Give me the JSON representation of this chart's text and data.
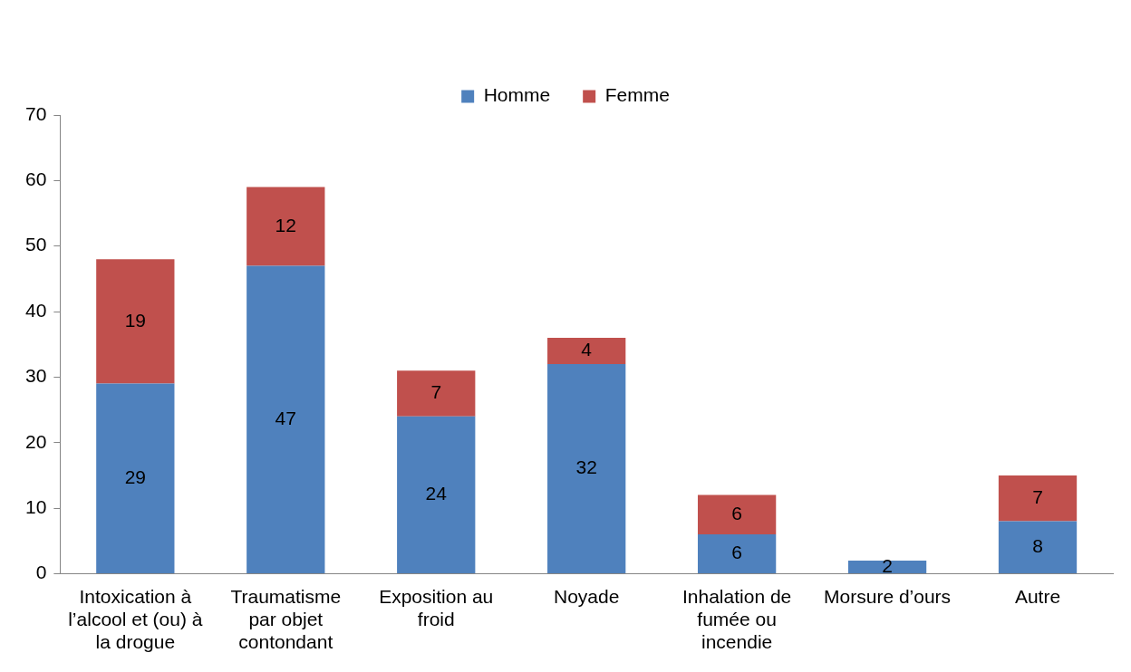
{
  "chart_data": {
    "type": "bar",
    "stacked": true,
    "categories": [
      "Intoxication à l’alcool et (ou) à la drogue",
      "Traumatisme par objet contondant",
      "Exposition au froid",
      "Noyade",
      "Inhalation de fumée ou incendie",
      "Morsure d’ours",
      "Autre"
    ],
    "series": [
      {
        "name": "Homme",
        "color": "#4f81bd",
        "values": [
          29,
          47,
          24,
          32,
          6,
          2,
          8
        ]
      },
      {
        "name": "Femme",
        "color": "#c0504d",
        "values": [
          19,
          12,
          7,
          4,
          6,
          null,
          7
        ]
      }
    ],
    "ylim": [
      0,
      70
    ],
    "yticks": [
      0,
      10,
      20,
      30,
      40,
      50,
      60,
      70
    ],
    "grid": false,
    "legend": "top",
    "data_labels": true
  }
}
